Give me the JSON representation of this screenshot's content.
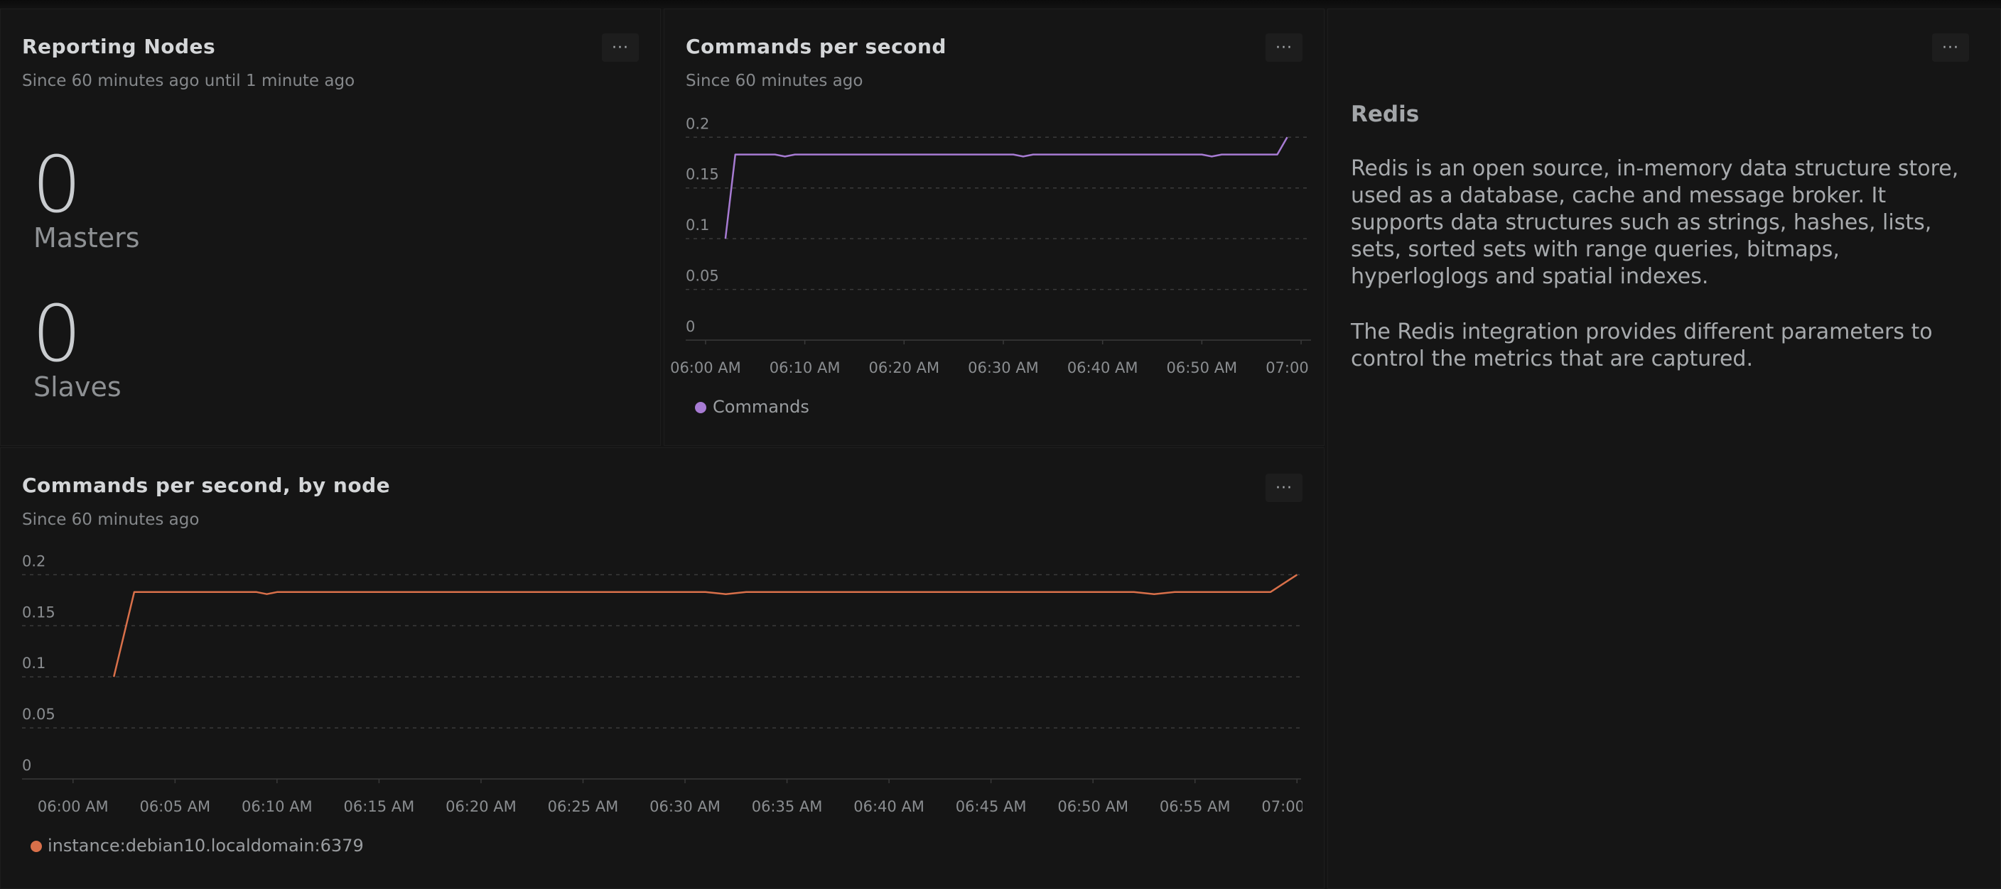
{
  "panels": {
    "nodes": {
      "title": "Reporting Nodes",
      "subtitle": "Since 60 minutes ago until 1 minute ago",
      "masters_value": "0",
      "masters_label": "Masters",
      "slaves_value": "0",
      "slaves_label": "Slaves"
    },
    "cps": {
      "title": "Commands per second",
      "subtitle": "Since 60 minutes ago",
      "legend": "Commands"
    },
    "bynode": {
      "title": "Commands per second, by node",
      "subtitle": "Since 60 minutes ago",
      "legend": "instance:debian10.localdomain:6379"
    },
    "redis": {
      "heading": "Redis",
      "para1": "Redis is an open source, in-memory data structure store, used as a database, cache and message broker. It supports data structures such as strings, hashes, lists, sets, sorted sets with range queries, bitmaps, hyperloglogs and spatial indexes.",
      "para2": "The Redis integration provides different parameters to control the metrics that are captured."
    },
    "menu_label": "···"
  },
  "chart_data": [
    {
      "type": "line",
      "title": "Commands per second",
      "subtitle": "Since 60 minutes ago",
      "yticks": [
        "0",
        "0.05",
        "0.1",
        "0.15",
        "0.2"
      ],
      "ylim": [
        0,
        0.21
      ],
      "xlim": [
        -2,
        61
      ],
      "xticks": [
        {
          "t": 0,
          "label": "06:00 AM"
        },
        {
          "t": 10,
          "label": "06:10 AM"
        },
        {
          "t": 20,
          "label": "06:20 AM"
        },
        {
          "t": 30,
          "label": "06:30 AM"
        },
        {
          "t": 40,
          "label": "06:40 AM"
        },
        {
          "t": 50,
          "label": "06:50 AM"
        },
        {
          "t": 60,
          "label": "07:00 AM"
        }
      ],
      "grid": "horizontal-dashed",
      "legend_position": "bottom-left",
      "series": [
        {
          "name": "Commands",
          "color": "#a77bd3",
          "points": [
            [
              2,
              0.1
            ],
            [
              3,
              0.183
            ],
            [
              7,
              0.183
            ],
            [
              8,
              0.181
            ],
            [
              9,
              0.183
            ],
            [
              31,
              0.183
            ],
            [
              32,
              0.181
            ],
            [
              33,
              0.183
            ],
            [
              50,
              0.183
            ],
            [
              51,
              0.181
            ],
            [
              52,
              0.183
            ],
            [
              57.6,
              0.183
            ],
            [
              58.6,
              0.2
            ]
          ]
        }
      ]
    },
    {
      "type": "line",
      "title": "Commands per second, by node",
      "subtitle": "Since 60 minutes ago",
      "yticks": [
        "0",
        "0.05",
        "0.1",
        "0.15",
        "0.2"
      ],
      "ylim": [
        0,
        0.21
      ],
      "xlim": [
        -2.5,
        60.2
      ],
      "xticks": [
        {
          "t": 0,
          "label": "06:00 AM"
        },
        {
          "t": 5,
          "label": "06:05 AM"
        },
        {
          "t": 10,
          "label": "06:10 AM"
        },
        {
          "t": 15,
          "label": "06:15 AM"
        },
        {
          "t": 20,
          "label": "06:20 AM"
        },
        {
          "t": 25,
          "label": "06:25 AM"
        },
        {
          "t": 30,
          "label": "06:30 AM"
        },
        {
          "t": 35,
          "label": "06:35 AM"
        },
        {
          "t": 40,
          "label": "06:40 AM"
        },
        {
          "t": 45,
          "label": "06:45 AM"
        },
        {
          "t": 50,
          "label": "06:50 AM"
        },
        {
          "t": 55,
          "label": "06:55 AM"
        },
        {
          "t": 60,
          "label": "07:00 AM"
        }
      ],
      "grid": "horizontal-dashed",
      "legend_position": "bottom-left",
      "series": [
        {
          "name": "instance:debian10.localdomain:6379",
          "color": "#d9704a",
          "points": [
            [
              2,
              0.1
            ],
            [
              3,
              0.183
            ],
            [
              9,
              0.183
            ],
            [
              9.5,
              0.181
            ],
            [
              10,
              0.183
            ],
            [
              31,
              0.183
            ],
            [
              32,
              0.181
            ],
            [
              33,
              0.183
            ],
            [
              52,
              0.183
            ],
            [
              53,
              0.181
            ],
            [
              54,
              0.183
            ],
            [
              58.7,
              0.183
            ],
            [
              60,
              0.2
            ]
          ]
        }
      ]
    }
  ]
}
